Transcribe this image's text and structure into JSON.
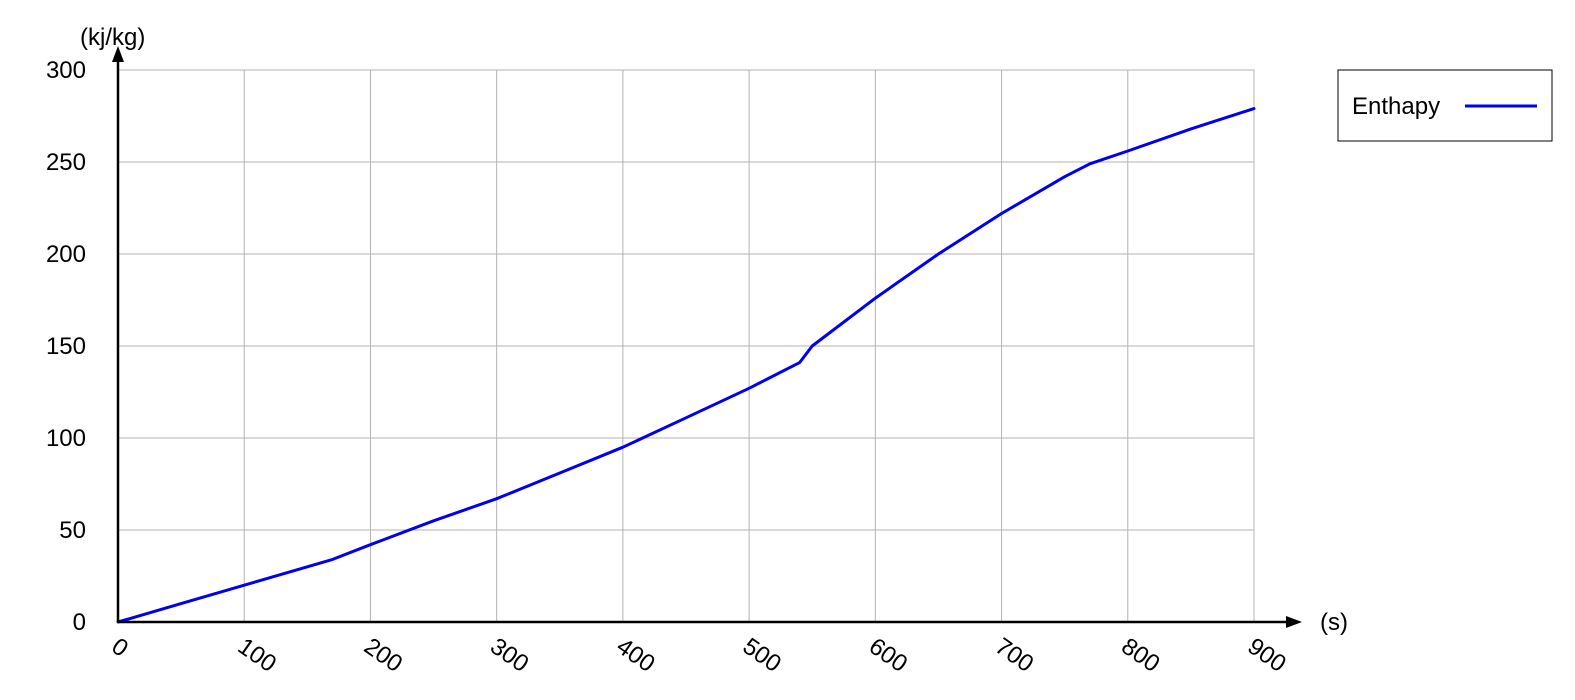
{
  "chart_data": {
    "type": "line",
    "title": "",
    "xlabel": "(s)",
    "ylabel": "(kj/kg)",
    "xlim": [
      0,
      900
    ],
    "ylim": [
      0,
      300
    ],
    "x_ticks": [
      0,
      100,
      200,
      300,
      400,
      500,
      600,
      700,
      800,
      900
    ],
    "y_ticks": [
      0,
      50,
      100,
      150,
      200,
      250,
      300
    ],
    "grid": true,
    "legend_position": "top-right",
    "series": [
      {
        "name": "Enthapy",
        "color": "#0000ee",
        "x": [
          0,
          50,
          100,
          150,
          170,
          200,
          250,
          300,
          350,
          400,
          450,
          500,
          540,
          550,
          600,
          650,
          700,
          750,
          770,
          800,
          850,
          900
        ],
        "y": [
          0,
          10,
          20,
          30,
          34,
          42,
          55,
          67,
          81,
          95,
          111,
          127,
          141,
          150,
          176,
          200,
          222,
          242,
          249,
          256,
          268,
          279
        ]
      }
    ]
  }
}
